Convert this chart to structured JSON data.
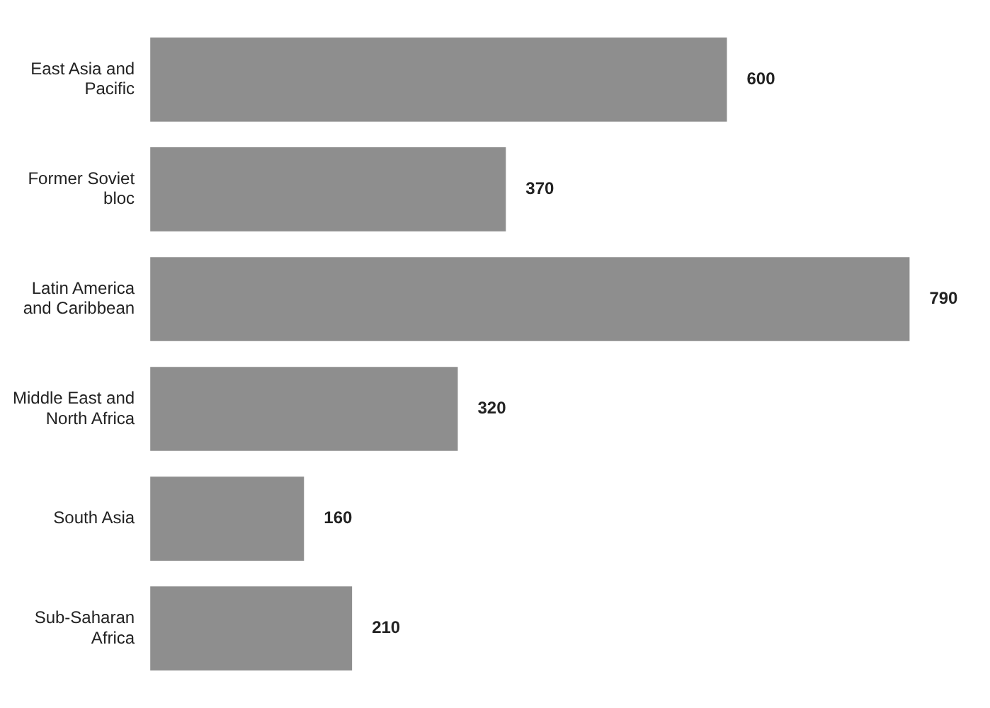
{
  "chart_data": {
    "type": "bar",
    "orientation": "horizontal",
    "categories": [
      "East Asia and Pacific",
      "Former Soviet bloc",
      "Latin America and Caribbean",
      "Middle East and North Africa",
      "South Asia",
      "Sub-Saharan Africa"
    ],
    "values": [
      600,
      370,
      790,
      320,
      160,
      210
    ],
    "color": "#8e8e8e",
    "data_labels": true
  }
}
